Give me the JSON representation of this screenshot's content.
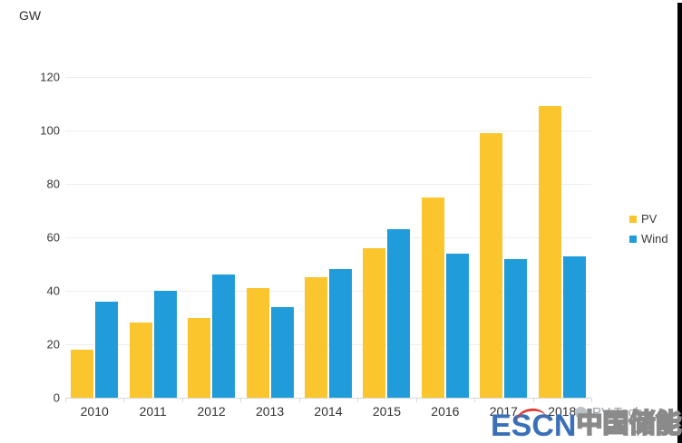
{
  "chart": {
    "unit_label": "GW"
  },
  "chart_data": {
    "type": "bar",
    "title": "",
    "xlabel": "",
    "ylabel": "GW",
    "categories": [
      "2010",
      "2011",
      "2012",
      "2013",
      "2014",
      "2015",
      "2016",
      "2017",
      "2018"
    ],
    "series": [
      {
        "name": "PV",
        "color": "#FBC52D",
        "values": [
          18,
          28,
          30,
          41,
          45,
          56,
          75,
          99,
          109
        ]
      },
      {
        "name": "Wind",
        "color": "#1F9CD9",
        "values": [
          36,
          40,
          46,
          34,
          48,
          63,
          54,
          52,
          53
        ]
      }
    ],
    "ylim": [
      0,
      120
    ],
    "yticks": [
      120,
      100,
      80,
      60,
      40,
      20,
      0
    ],
    "grid": "horizontal",
    "legend_position": "right"
  },
  "watermark": {
    "brand": "ESCN",
    "brand_cn": "中国储能网",
    "brand_color": "#3a70b8",
    "accent_color": "#e03a34"
  },
  "credit": {
    "source": "PV Tech"
  }
}
